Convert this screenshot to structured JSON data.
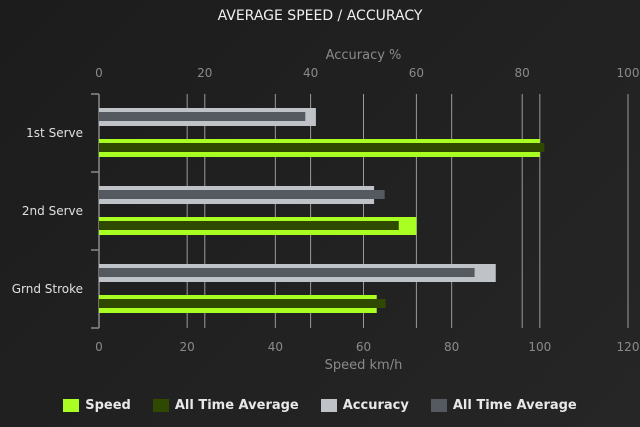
{
  "chart_data": {
    "type": "bar",
    "orientation": "horizontal",
    "title": "AVERAGE SPEED / ACCURACY",
    "categories": [
      "1st Serve",
      "2nd Serve",
      "Grnd Stroke"
    ],
    "top_axis": {
      "label": "Accuracy %",
      "range": [
        0,
        100
      ],
      "ticks": [
        0,
        20,
        40,
        60,
        80,
        100
      ]
    },
    "bottom_axis": {
      "label": "Speed km/h",
      "range": [
        0,
        120
      ],
      "ticks": [
        0,
        20,
        40,
        60,
        80,
        100,
        120
      ]
    },
    "grid": true,
    "legend_position": "bottom",
    "series": [
      {
        "name": "Speed",
        "axis": "bottom",
        "color": "#aaff22",
        "values": [
          100,
          72,
          63
        ]
      },
      {
        "name": "All Time Average",
        "axis": "bottom",
        "color": "#2f4a00",
        "values": [
          101,
          68,
          65
        ]
      },
      {
        "name": "Accuracy",
        "axis": "top",
        "color": "#bfc3c7",
        "values": [
          41,
          52,
          75
        ]
      },
      {
        "name": "All Time Average",
        "axis": "top",
        "color": "#555a61",
        "values": [
          39,
          54,
          71
        ]
      }
    ]
  }
}
